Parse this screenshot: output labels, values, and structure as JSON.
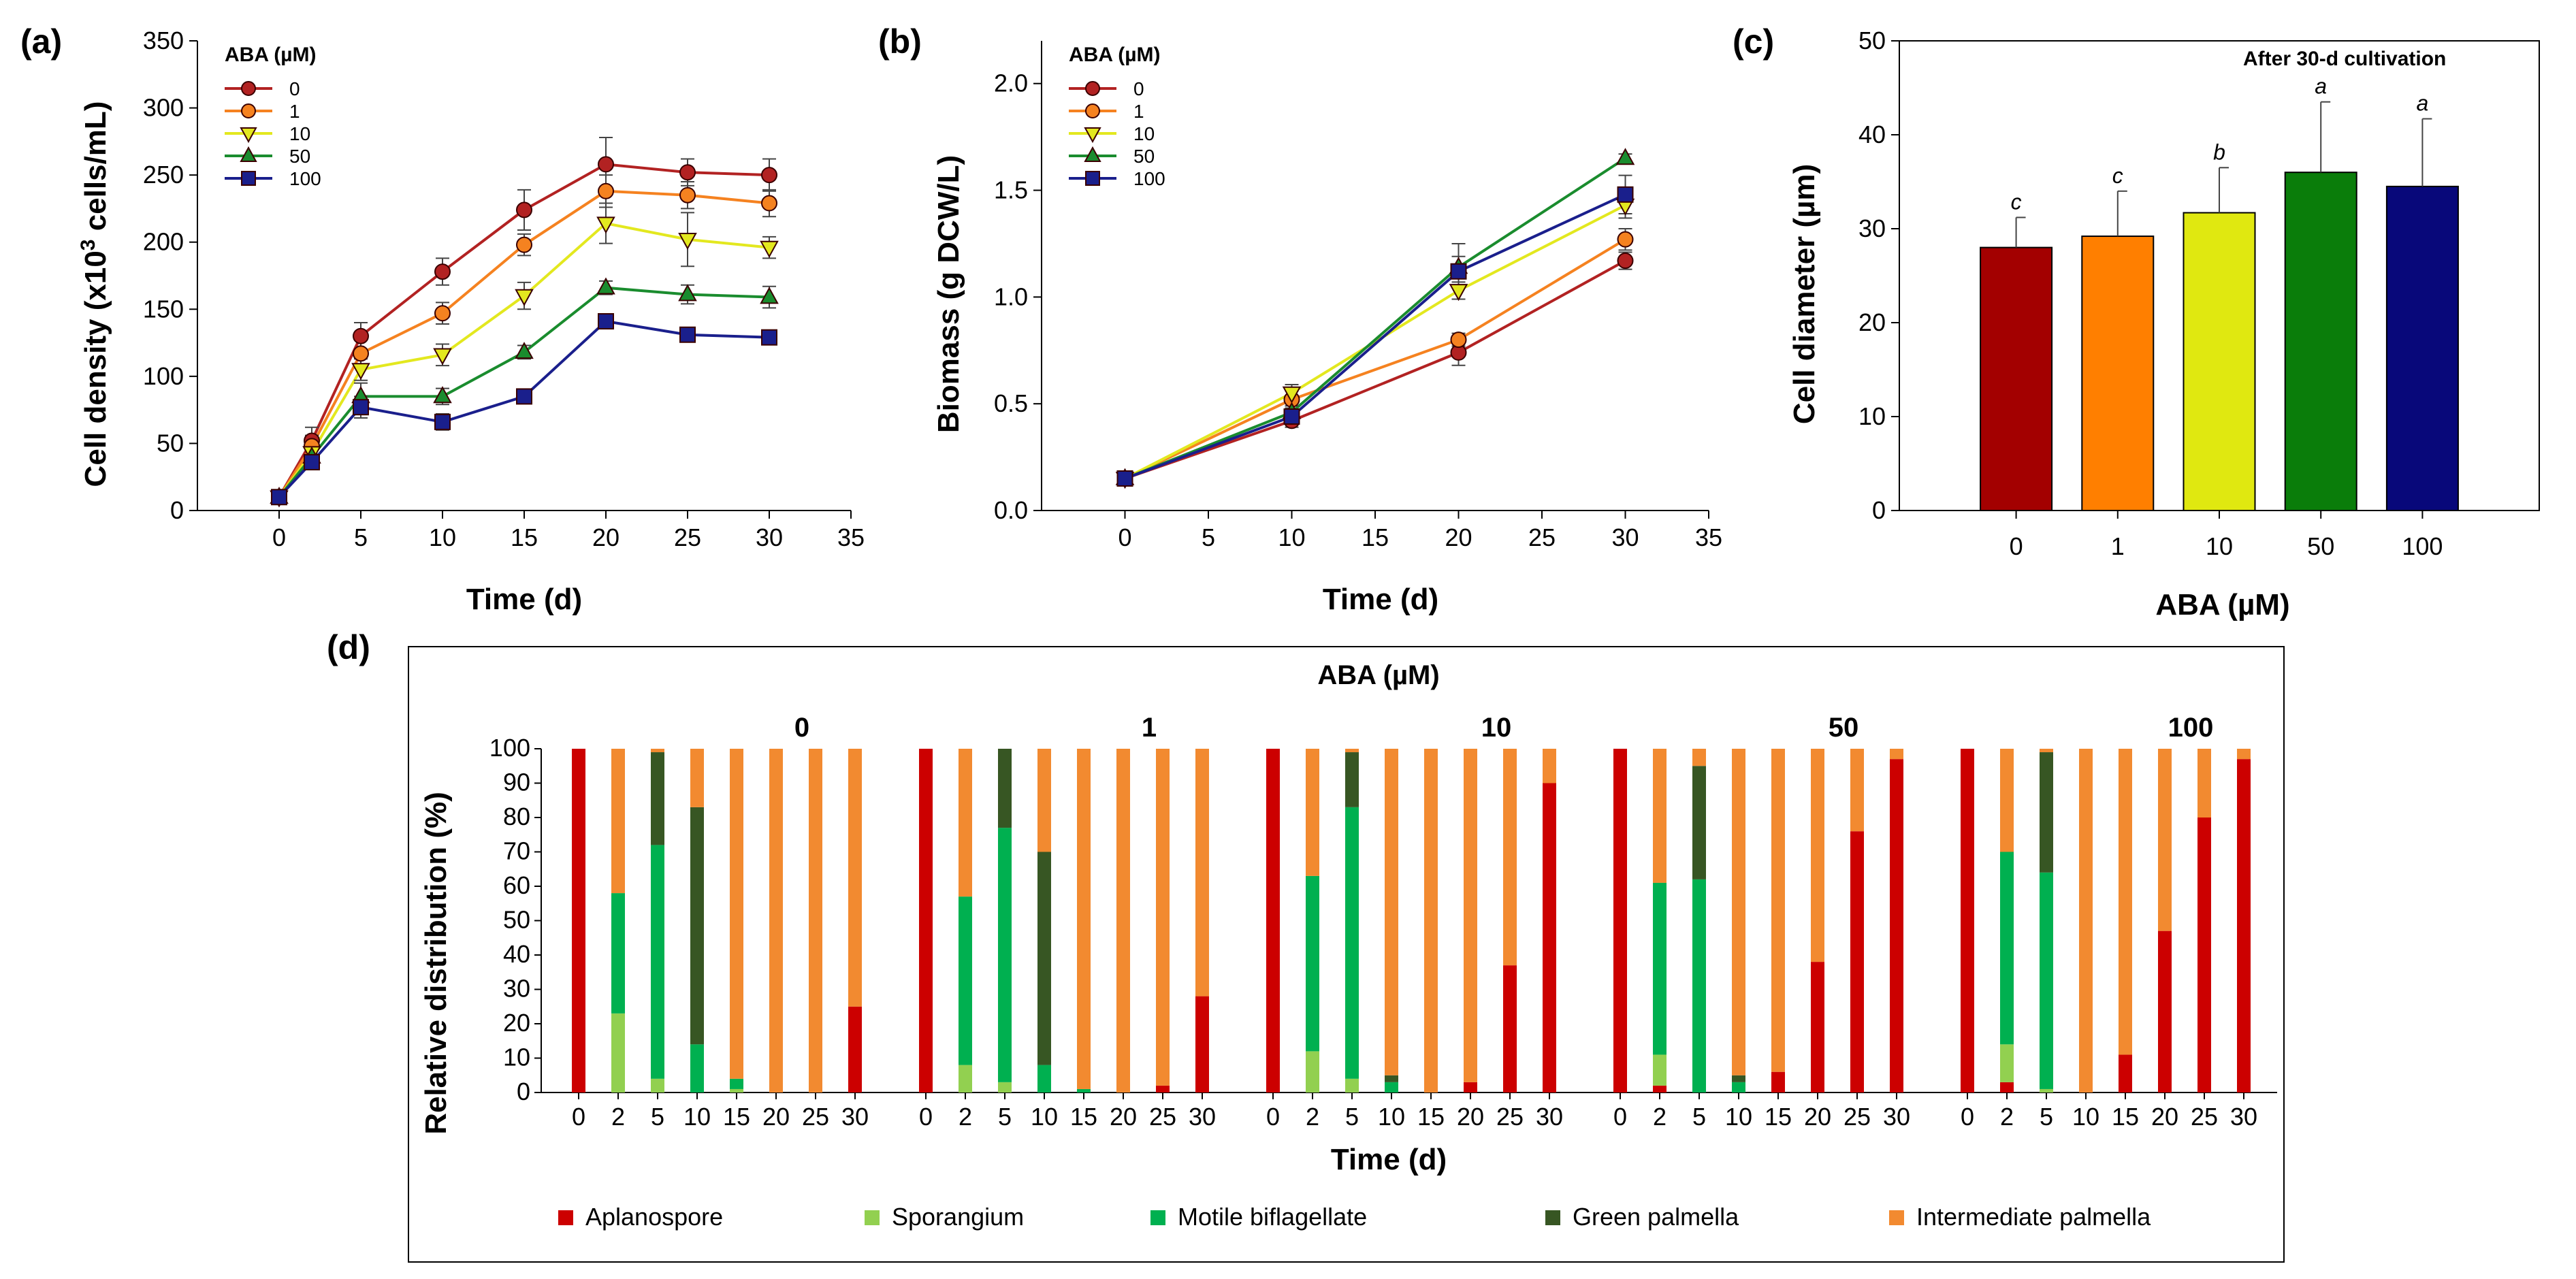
{
  "chart_data": [
    {
      "panel": "(a)",
      "type": "line",
      "xlabel": "Time (d)",
      "ylabel_prefix": "Cell density (x10",
      "ylabel_sup": "3",
      "ylabel_suffix": " cells/mL)",
      "xlim": [
        -5,
        35
      ],
      "ylim": [
        0,
        350
      ],
      "xticks": [
        0,
        5,
        10,
        15,
        20,
        25,
        30,
        35
      ],
      "yticks": [
        0,
        50,
        100,
        150,
        200,
        250,
        300,
        350
      ],
      "legend_title": "ABA (µM)",
      "legend_position": "top-left",
      "x": [
        0,
        2,
        5,
        10,
        15,
        20,
        25,
        30
      ],
      "series": [
        {
          "name": "0",
          "color": "#b22222",
          "marker": "circle",
          "values": [
            10,
            52,
            130,
            178,
            224,
            258,
            252,
            250
          ],
          "errors": [
            0,
            10,
            10,
            10,
            15,
            20,
            10,
            12
          ]
        },
        {
          "name": "1",
          "color": "#f58220",
          "marker": "circle",
          "values": [
            10,
            48,
            117,
            147,
            198,
            238,
            235,
            229
          ],
          "errors": [
            0,
            8,
            10,
            8,
            8,
            12,
            10,
            10
          ]
        },
        {
          "name": "10",
          "color": "#e3e81f",
          "marker": "triangle-down",
          "values": [
            10,
            43,
            105,
            116,
            160,
            214,
            202,
            196
          ],
          "errors": [
            0,
            6,
            8,
            8,
            10,
            15,
            20,
            8
          ]
        },
        {
          "name": "50",
          "color": "#1a8c2e",
          "marker": "triangle-up",
          "values": [
            10,
            40,
            85,
            85,
            118,
            166,
            161,
            159
          ],
          "errors": [
            0,
            5,
            10,
            6,
            5,
            5,
            7,
            8
          ]
        },
        {
          "name": "100",
          "color": "#1a1f8c",
          "marker": "square",
          "values": [
            10,
            36,
            77,
            66,
            85,
            141,
            131,
            129
          ],
          "errors": [
            0,
            4,
            8,
            6,
            4,
            4,
            4,
            4
          ]
        }
      ]
    },
    {
      "panel": "(b)",
      "type": "line",
      "xlabel": "Time (d)",
      "ylabel": "Biomass (g DCW/L)",
      "xlim": [
        -5,
        35
      ],
      "ylim": [
        0,
        2.2
      ],
      "xticks": [
        0,
        5,
        10,
        15,
        20,
        25,
        30,
        35
      ],
      "yticks": [
        "0.0",
        "0.5",
        "1.0",
        "1.5",
        "2.0"
      ],
      "legend_title": "ABA (µM)",
      "legend_position": "top-left",
      "x": [
        0,
        10,
        20,
        30
      ],
      "series": [
        {
          "name": "0",
          "color": "#b22222",
          "marker": "circle",
          "values": [
            0.15,
            0.42,
            0.74,
            1.17
          ],
          "errors": [
            0.02,
            0.03,
            0.06,
            0.04
          ]
        },
        {
          "name": "1",
          "color": "#f58220",
          "marker": "circle",
          "values": [
            0.15,
            0.52,
            0.8,
            1.27
          ],
          "errors": [
            0.02,
            0.04,
            0.03,
            0.05
          ]
        },
        {
          "name": "10",
          "color": "#e3e81f",
          "marker": "triangle-down",
          "values": [
            0.15,
            0.55,
            1.03,
            1.43
          ],
          "errors": [
            0.02,
            0.04,
            0.04,
            0.06
          ]
        },
        {
          "name": "50",
          "color": "#1a8c2e",
          "marker": "triangle-up",
          "values": [
            0.15,
            0.46,
            1.14,
            1.65
          ],
          "errors": [
            0.02,
            0.03,
            0.05,
            0.02
          ]
        },
        {
          "name": "100",
          "color": "#1a1f8c",
          "marker": "square",
          "values": [
            0.15,
            0.44,
            1.12,
            1.48
          ],
          "errors": [
            0.02,
            0.03,
            0.13,
            0.09
          ]
        }
      ]
    },
    {
      "panel": "(c)",
      "type": "bar",
      "xlabel": "ABA (µM)",
      "ylabel": "Cell diameter (µm)",
      "annotation": "After 30-d cultivation",
      "ylim": [
        0,
        50
      ],
      "yticks": [
        0,
        10,
        20,
        30,
        40,
        50
      ],
      "categories": [
        "0",
        "1",
        "10",
        "50",
        "100"
      ],
      "values": [
        28,
        29.2,
        31.7,
        36,
        34.5
      ],
      "errors": [
        3.2,
        4.8,
        4.8,
        7.5,
        7.2
      ],
      "significance": [
        "c",
        "c",
        "b",
        "a",
        "a"
      ],
      "colors": [
        "#a30000",
        "#ff7f00",
        "#e0e810",
        "#0a7d0a",
        "#08087a"
      ]
    },
    {
      "panel": "(d)",
      "type": "bar",
      "stacked": true,
      "title": "ABA (µM)",
      "xlabel": "Time (d)",
      "ylabel": "Relative distribution (%)",
      "ylim": [
        0,
        100
      ],
      "yticks": [
        0,
        10,
        20,
        30,
        40,
        50,
        60,
        70,
        80,
        90,
        100
      ],
      "x": [
        "0",
        "2",
        "5",
        "10",
        "15",
        "20",
        "25",
        "30"
      ],
      "stages": [
        {
          "name": "Aplanospore",
          "color": "#cc0000"
        },
        {
          "name": "Sporangium",
          "color": "#92d050"
        },
        {
          "name": "Motile biflagellate",
          "color": "#00b050"
        },
        {
          "name": "Green palmella",
          "color": "#375623"
        },
        {
          "name": "Intermediate palmella",
          "color": "#f28a30"
        }
      ],
      "groups": [
        {
          "label": "0",
          "bars": [
            [
              100,
              0,
              0,
              0,
              0
            ],
            [
              0,
              23,
              35,
              0,
              42
            ],
            [
              0,
              4,
              68,
              27,
              1
            ],
            [
              0,
              0,
              14,
              69,
              17
            ],
            [
              0,
              1,
              3,
              0,
              96
            ],
            [
              0,
              0,
              0,
              0,
              100
            ],
            [
              0,
              0,
              0,
              0,
              100
            ],
            [
              25,
              0,
              0,
              0,
              75
            ]
          ]
        },
        {
          "label": "1",
          "bars": [
            [
              100,
              0,
              0,
              0,
              0
            ],
            [
              0,
              8,
              49,
              0,
              43
            ],
            [
              0,
              3,
              74,
              23,
              0
            ],
            [
              0,
              0,
              8,
              62,
              30
            ],
            [
              0,
              0,
              1,
              0,
              99
            ],
            [
              0,
              0,
              0,
              0,
              100
            ],
            [
              2,
              0,
              0,
              0,
              98
            ],
            [
              28,
              0,
              0,
              0,
              72
            ]
          ]
        },
        {
          "label": "10",
          "bars": [
            [
              100,
              0,
              0,
              0,
              0
            ],
            [
              0,
              12,
              51,
              0,
              37
            ],
            [
              0,
              4,
              79,
              16,
              1
            ],
            [
              0,
              0,
              3,
              2,
              95
            ],
            [
              0,
              0,
              0,
              0,
              100
            ],
            [
              3,
              0,
              0,
              0,
              97
            ],
            [
              37,
              0,
              0,
              0,
              63
            ],
            [
              90,
              0,
              0,
              0,
              10
            ]
          ]
        },
        {
          "label": "50",
          "bars": [
            [
              100,
              0,
              0,
              0,
              0
            ],
            [
              2,
              9,
              50,
              0,
              39
            ],
            [
              0,
              0,
              62,
              33,
              5
            ],
            [
              0,
              0,
              3,
              2,
              95
            ],
            [
              6,
              0,
              0,
              0,
              94
            ],
            [
              38,
              0,
              0,
              0,
              62
            ],
            [
              76,
              0,
              0,
              0,
              24
            ],
            [
              97,
              0,
              0,
              0,
              3
            ]
          ]
        },
        {
          "label": "100",
          "bars": [
            [
              100,
              0,
              0,
              0,
              0
            ],
            [
              3,
              11,
              56,
              0,
              30
            ],
            [
              0,
              1,
              63,
              35,
              1
            ],
            [
              0,
              0,
              0,
              0,
              100
            ],
            [
              11,
              0,
              0,
              0,
              89
            ],
            [
              47,
              0,
              0,
              0,
              53
            ],
            [
              80,
              0,
              0,
              0,
              20
            ],
            [
              97,
              0,
              0,
              0,
              3
            ]
          ]
        }
      ]
    }
  ]
}
